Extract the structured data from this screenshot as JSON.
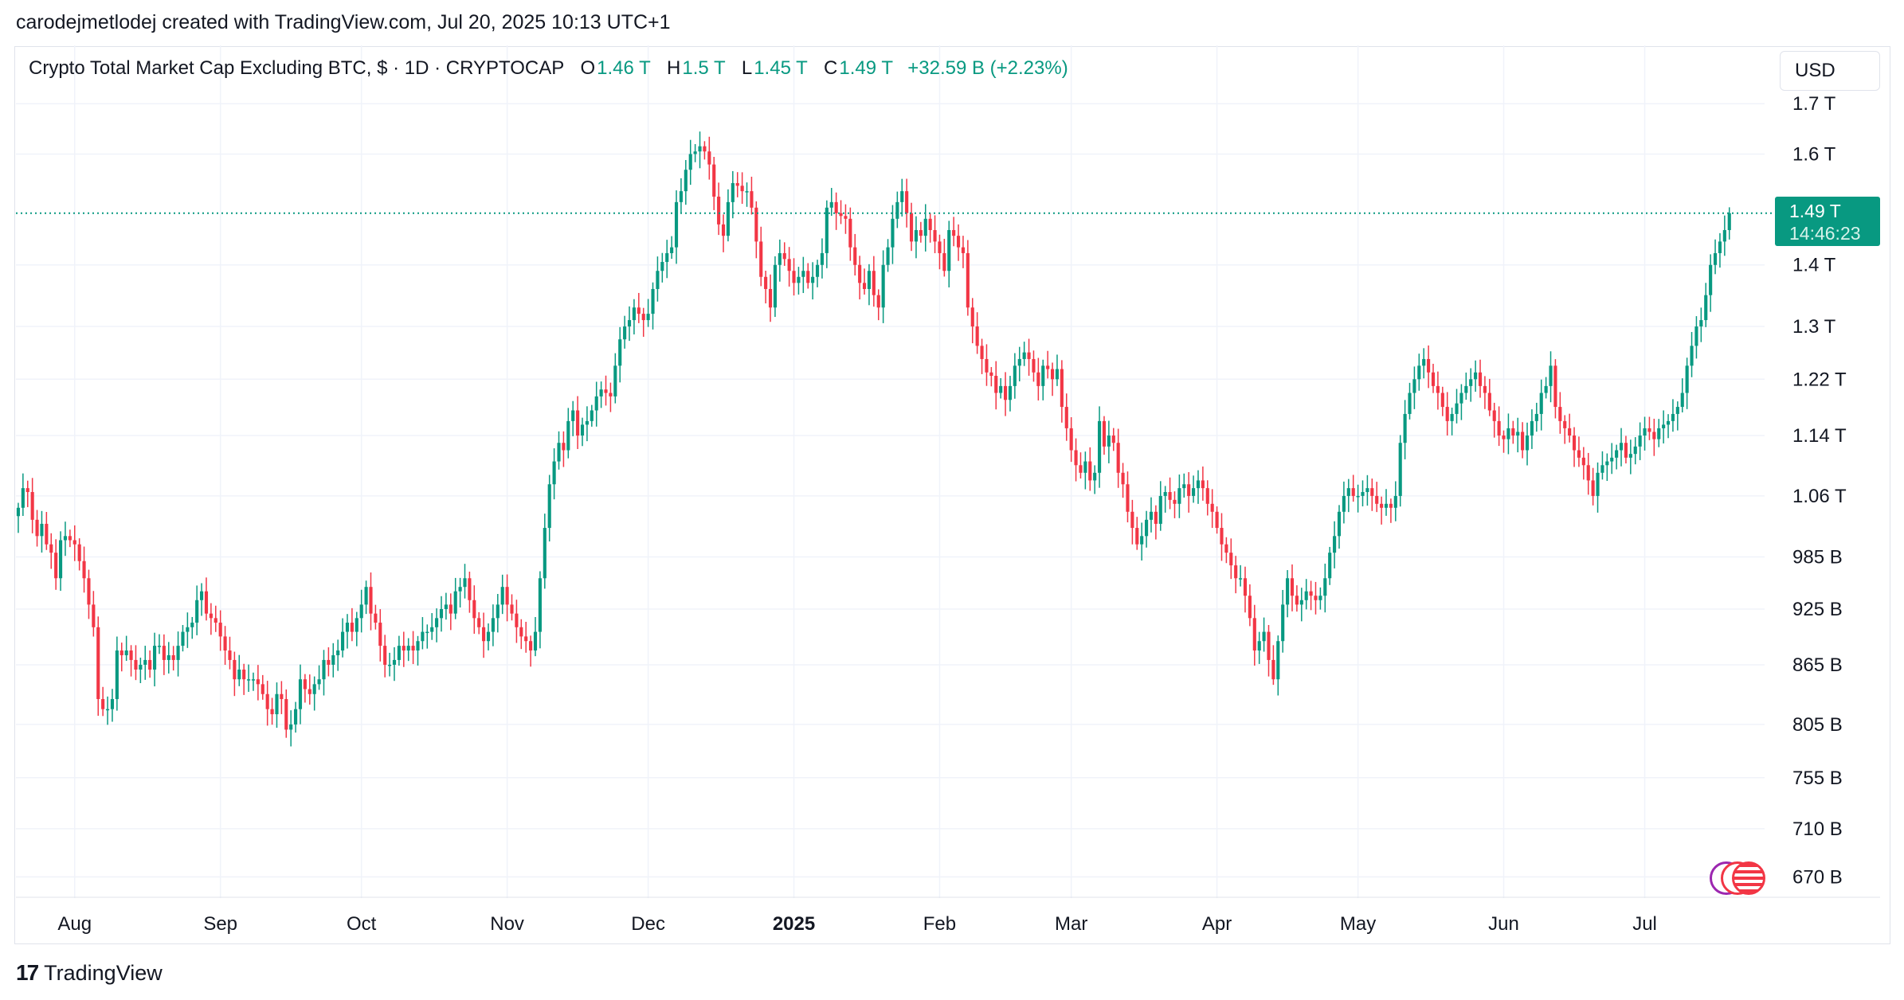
{
  "header": {
    "created_by": "carodejmetlodej created with TradingView.com, Jul 20, 2025 10:13 UTC+1"
  },
  "legend": {
    "symbol": "Crypto Total Market Cap Excluding BTC, $ · 1D · CRYPTOCAP",
    "o_label": "O",
    "o_value": "1.46 T",
    "h_label": "H",
    "h_value": "1.5 T",
    "l_label": "L",
    "l_value": "1.45 T",
    "c_label": "C",
    "c_value": "1.49 T",
    "change": "+32.59 B (+2.23%)"
  },
  "currency": "USD",
  "last_price": {
    "value": "1.49 T",
    "countdown": "14:46:23"
  },
  "footer": {
    "logo_mark": "17",
    "logo_text": "TradingView"
  },
  "colors": {
    "up": "#089981",
    "down": "#f23645",
    "grid": "#f0f3fa",
    "text": "#131722"
  },
  "icons": {
    "flags": "us-flag-icon"
  },
  "chart_data": {
    "type": "candlestick",
    "title": "Crypto Total Market Cap Excluding BTC, $ · 1D · CRYPTOCAP",
    "y_scale": "log",
    "ylim": [
      655,
      1730
    ],
    "y_ticks": [
      {
        "value": 1700,
        "label": "1.7 T"
      },
      {
        "value": 1600,
        "label": "1.6 T"
      },
      {
        "value": 1400,
        "label": "1.4 T"
      },
      {
        "value": 1300,
        "label": "1.3 T"
      },
      {
        "value": 1220,
        "label": "1.22 T"
      },
      {
        "value": 1140,
        "label": "1.14 T"
      },
      {
        "value": 1060,
        "label": "1.06 T"
      },
      {
        "value": 985,
        "label": "985 B"
      },
      {
        "value": 925,
        "label": "925 B"
      },
      {
        "value": 865,
        "label": "865 B"
      },
      {
        "value": 805,
        "label": "805 B"
      },
      {
        "value": 755,
        "label": "755 B"
      },
      {
        "value": 710,
        "label": "710 B"
      },
      {
        "value": 670,
        "label": "670 B"
      }
    ],
    "x_ticks": [
      {
        "day": 12,
        "label": "Aug",
        "bold": false
      },
      {
        "day": 43,
        "label": "Sep",
        "bold": false
      },
      {
        "day": 73,
        "label": "Oct",
        "bold": false
      },
      {
        "day": 104,
        "label": "Nov",
        "bold": false
      },
      {
        "day": 134,
        "label": "Dec",
        "bold": false
      },
      {
        "day": 165,
        "label": "2025",
        "bold": true
      },
      {
        "day": 196,
        "label": "Feb",
        "bold": false
      },
      {
        "day": 224,
        "label": "Mar",
        "bold": false
      },
      {
        "day": 255,
        "label": "Apr",
        "bold": false
      },
      {
        "day": 285,
        "label": "May",
        "bold": false
      },
      {
        "day": 316,
        "label": "Jun",
        "bold": false
      },
      {
        "day": 346,
        "label": "Jul",
        "bold": false
      }
    ],
    "last_value": 1490,
    "start_date": "2024-07-21",
    "day_count": 365,
    "closes": [
      1045,
      1070,
      1065,
      1030,
      1010,
      1025,
      1000,
      990,
      960,
      1005,
      1010,
      1005,
      1000,
      980,
      960,
      930,
      905,
      830,
      820,
      820,
      830,
      880,
      875,
      880,
      870,
      860,
      865,
      870,
      860,
      885,
      885,
      870,
      875,
      870,
      885,
      900,
      905,
      910,
      935,
      945,
      920,
      915,
      910,
      895,
      880,
      870,
      850,
      860,
      850,
      850,
      850,
      845,
      835,
      820,
      815,
      835,
      830,
      800,
      805,
      820,
      850,
      840,
      835,
      845,
      850,
      870,
      865,
      875,
      880,
      900,
      910,
      900,
      915,
      930,
      950,
      920,
      910,
      885,
      865,
      865,
      870,
      885,
      880,
      885,
      880,
      890,
      900,
      900,
      905,
      915,
      925,
      930,
      920,
      945,
      950,
      960,
      935,
      915,
      905,
      890,
      900,
      915,
      930,
      950,
      930,
      920,
      905,
      895,
      890,
      880,
      900,
      960,
      1020,
      1075,
      1105,
      1130,
      1120,
      1160,
      1175,
      1140,
      1155,
      1160,
      1175,
      1195,
      1205,
      1200,
      1195,
      1240,
      1280,
      1300,
      1310,
      1330,
      1320,
      1310,
      1320,
      1360,
      1390,
      1405,
      1420,
      1430,
      1510,
      1530,
      1570,
      1600,
      1605,
      1615,
      1605,
      1580,
      1520,
      1470,
      1450,
      1510,
      1545,
      1540,
      1530,
      1530,
      1500,
      1440,
      1380,
      1360,
      1330,
      1400,
      1420,
      1410,
      1390,
      1370,
      1380,
      1390,
      1370,
      1380,
      1400,
      1420,
      1500,
      1510,
      1490,
      1485,
      1480,
      1430,
      1400,
      1370,
      1360,
      1390,
      1350,
      1330,
      1400,
      1430,
      1480,
      1510,
      1530,
      1490,
      1440,
      1460,
      1450,
      1480,
      1460,
      1440,
      1420,
      1390,
      1460,
      1450,
      1430,
      1420,
      1330,
      1300,
      1270,
      1250,
      1230,
      1225,
      1200,
      1210,
      1190,
      1210,
      1240,
      1250,
      1260,
      1250,
      1230,
      1210,
      1240,
      1235,
      1220,
      1235,
      1180,
      1150,
      1120,
      1100,
      1090,
      1105,
      1080,
      1090,
      1160,
      1125,
      1140,
      1130,
      1090,
      1075,
      1040,
      1020,
      1000,
      1010,
      1030,
      1040,
      1025,
      1060,
      1065,
      1055,
      1050,
      1070,
      1075,
      1060,
      1070,
      1080,
      1070,
      1050,
      1040,
      1020,
      1000,
      990,
      975,
      960,
      960,
      940,
      915,
      880,
      890,
      900,
      870,
      850,
      890,
      930,
      960,
      940,
      930,
      935,
      945,
      940,
      935,
      940,
      960,
      990,
      1010,
      1040,
      1060,
      1070,
      1060,
      1060,
      1065,
      1070,
      1060,
      1050,
      1045,
      1050,
      1045,
      1060,
      1130,
      1170,
      1200,
      1220,
      1240,
      1250,
      1230,
      1210,
      1200,
      1180,
      1160,
      1170,
      1185,
      1200,
      1210,
      1220,
      1230,
      1210,
      1200,
      1175,
      1160,
      1140,
      1135,
      1150,
      1140,
      1145,
      1120,
      1140,
      1160,
      1170,
      1200,
      1210,
      1240,
      1180,
      1160,
      1150,
      1140,
      1120,
      1110,
      1100,
      1080,
      1060,
      1090,
      1100,
      1105,
      1110,
      1120,
      1130,
      1110,
      1115,
      1125,
      1140,
      1150,
      1145,
      1135,
      1150,
      1155,
      1160,
      1170,
      1180,
      1200,
      1240,
      1270,
      1300,
      1310,
      1350,
      1400,
      1420,
      1440,
      1460,
      1490
    ]
  }
}
